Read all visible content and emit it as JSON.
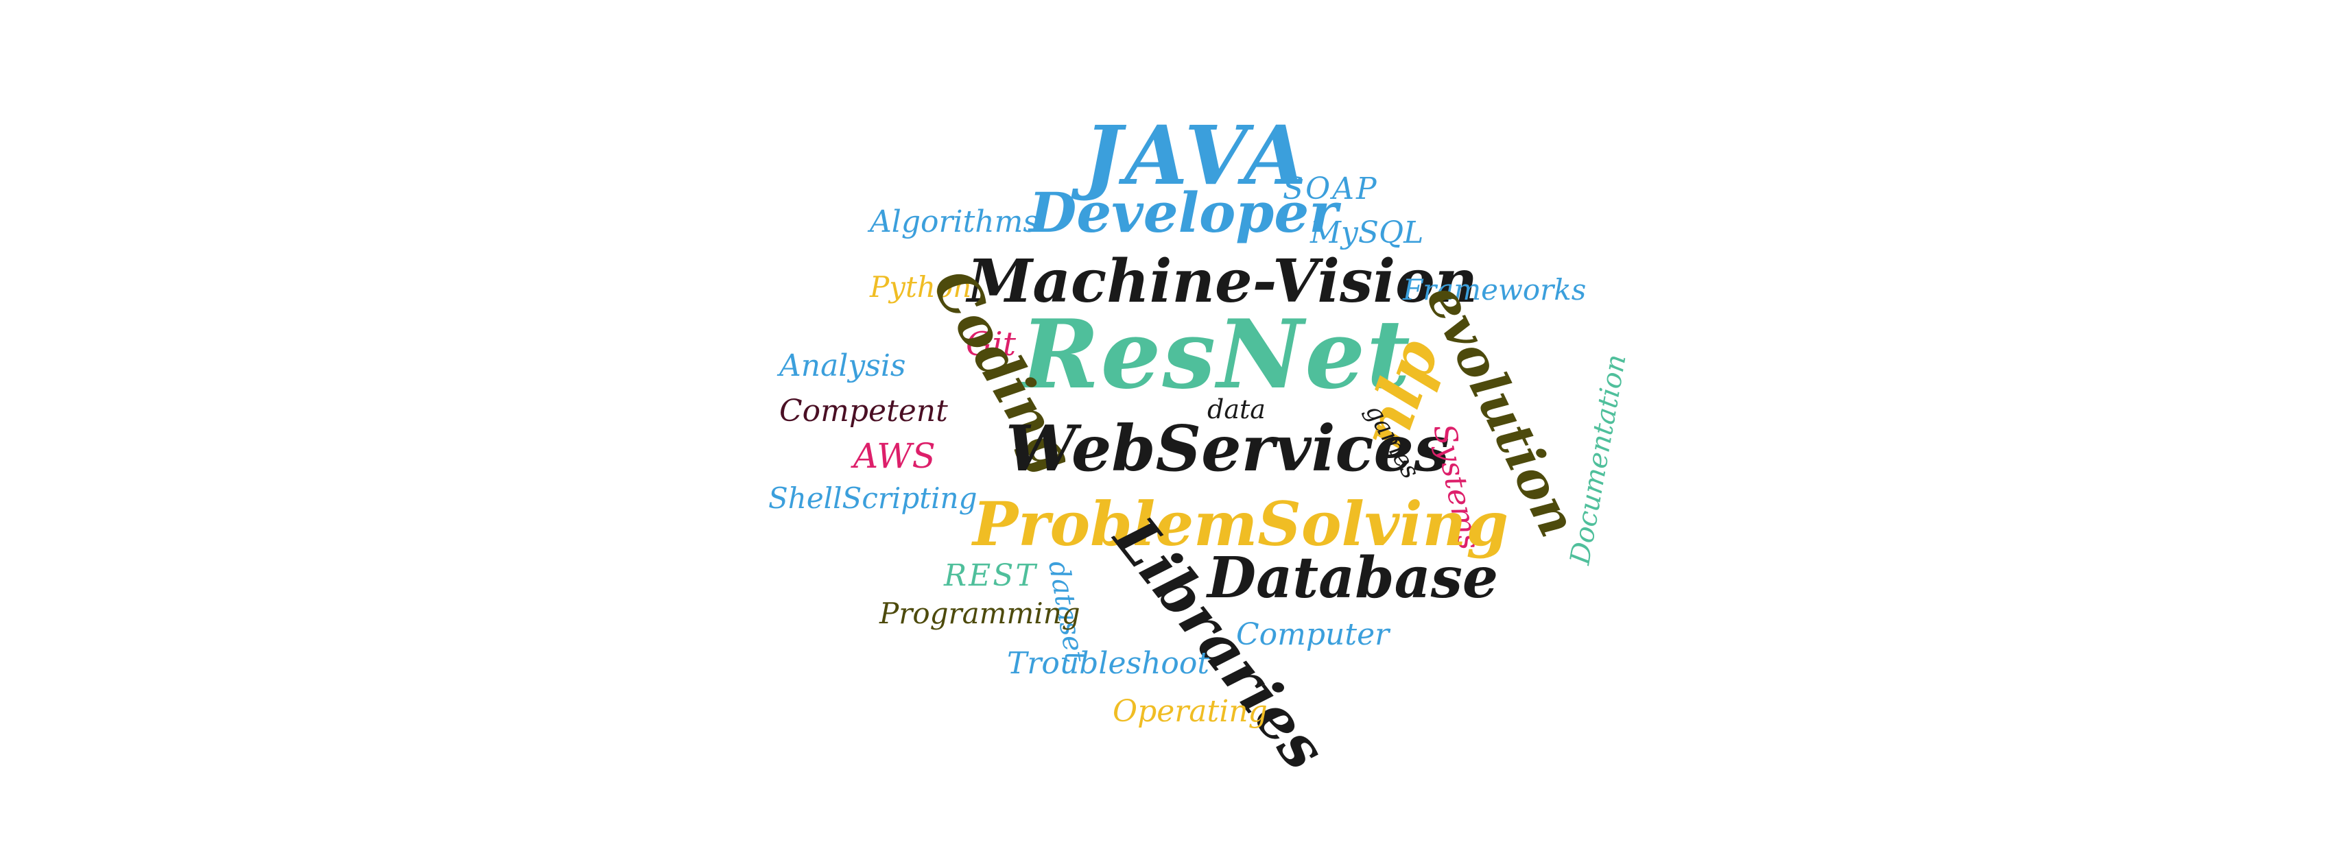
{
  "palette": {
    "blue": "#3b9fdc",
    "black": "#1a1a1a",
    "yellow": "#f0bd24",
    "teal": "#4fbf9b",
    "olive": "#4d4a0c",
    "pink": "#dd1f6a",
    "maroon": "#4a0f24",
    "background": "#ffffff"
  },
  "word_cloud": {
    "words": [
      {
        "text": "JAVA",
        "color": "#3b9fdc"
      },
      {
        "text": "SOAP",
        "color": "#3b9fdc"
      },
      {
        "text": "Algorithms",
        "color": "#3b9fdc"
      },
      {
        "text": "Developer",
        "color": "#3b9fdc"
      },
      {
        "text": "MySQL",
        "color": "#3b9fdc"
      },
      {
        "text": "Python",
        "color": "#f0bd24"
      },
      {
        "text": "Machine-Vision",
        "color": "#1a1a1a"
      },
      {
        "text": "Frameworks",
        "color": "#3b9fdc"
      },
      {
        "text": "Git",
        "color": "#dd1f6a"
      },
      {
        "text": "ResNet",
        "color": "#4fbf9b"
      },
      {
        "text": "Analysis",
        "color": "#3b9fdc"
      },
      {
        "text": "Coding",
        "color": "#4d4a0c"
      },
      {
        "text": "nlp",
        "color": "#f0bd24"
      },
      {
        "text": "evolution",
        "color": "#4d4a0c"
      },
      {
        "text": "Competent",
        "color": "#4a0f24"
      },
      {
        "text": "data",
        "color": "#1a1a1a"
      },
      {
        "text": "games",
        "color": "#1a1a1a"
      },
      {
        "text": "Documentation",
        "color": "#4fbf9b"
      },
      {
        "text": "WebServices",
        "color": "#1a1a1a"
      },
      {
        "text": "AWS",
        "color": "#dd1f6a"
      },
      {
        "text": "Systems",
        "color": "#dd1f6a"
      },
      {
        "text": "ShellScripting",
        "color": "#3b9fdc"
      },
      {
        "text": "ProblemSolving",
        "color": "#f0bd24"
      },
      {
        "text": "REST",
        "color": "#4fbf9b"
      },
      {
        "text": "dataset",
        "color": "#3b9fdc"
      },
      {
        "text": "Database",
        "color": "#1a1a1a"
      },
      {
        "text": "Libraries",
        "color": "#1a1a1a"
      },
      {
        "text": "Programming",
        "color": "#4d4a0c"
      },
      {
        "text": "Computer",
        "color": "#3b9fdc"
      },
      {
        "text": "Troubleshoot",
        "color": "#3b9fdc"
      },
      {
        "text": "Operating",
        "color": "#f0bd24"
      }
    ]
  }
}
